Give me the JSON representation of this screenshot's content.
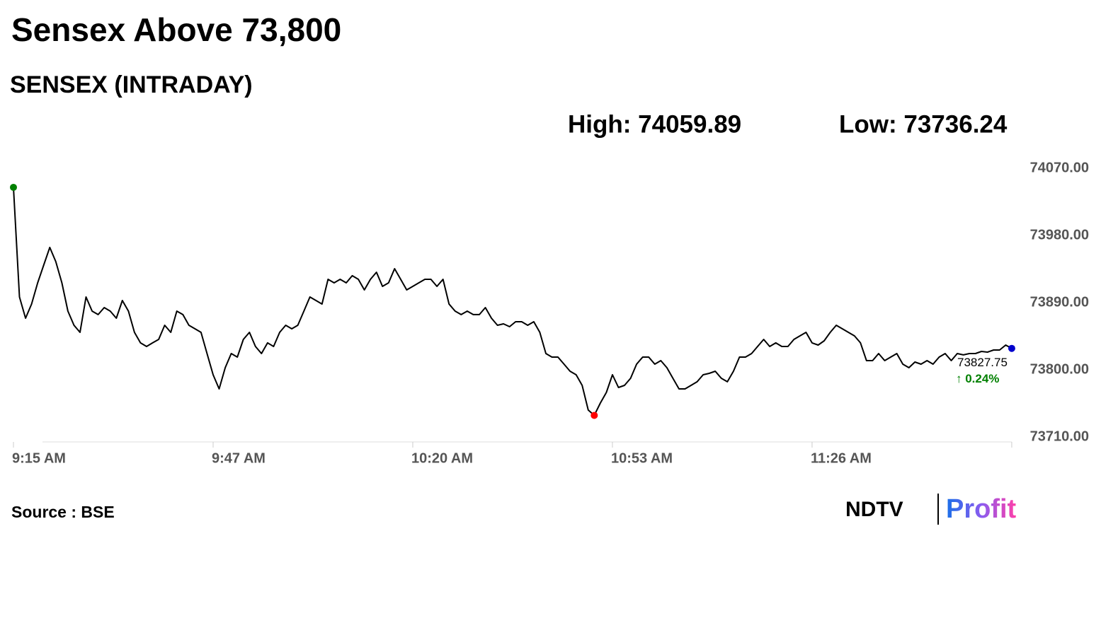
{
  "chart_data": {
    "type": "line",
    "title": "Sensex Above 73,800",
    "subtitle": "SENSEX (INTRADAY)",
    "high_label": "High: 74059.89",
    "low_label": "Low: 73736.24",
    "change_label": "↑ 0.24%",
    "source": "Source : BSE",
    "brand": {
      "left": "NDTV",
      "right": "Profit"
    },
    "color": "#000000",
    "start_color": "#008000",
    "low_color": "#ff0000",
    "end_color": "#0000cc",
    "change_color": "#008000",
    "grid": false,
    "ylim": [
      73710,
      74070
    ],
    "yticks": [
      {
        "value": 74070,
        "label": "74070.00"
      },
      {
        "value": 73980,
        "label": "73980.00"
      },
      {
        "value": 73890,
        "label": "73890.00"
      },
      {
        "value": 73800,
        "label": "73800.00"
      },
      {
        "value": 73710,
        "label": "73710.00"
      }
    ],
    "categories": [
      "9:15 AM",
      null,
      null,
      null,
      null,
      null,
      null,
      null,
      null,
      null,
      null,
      null,
      null,
      null,
      null,
      null,
      null,
      null,
      null,
      null,
      null,
      null,
      null,
      null,
      null,
      null,
      null,
      null,
      null,
      null,
      null,
      null,
      null,
      "9:47 AM",
      null,
      null,
      null,
      null,
      null,
      null,
      null,
      null,
      null,
      null,
      null,
      null,
      null,
      null,
      null,
      null,
      null,
      null,
      null,
      null,
      null,
      null,
      null,
      null,
      null,
      null,
      null,
      null,
      null,
      null,
      null,
      null,
      "10:20 AM",
      null,
      null,
      null,
      null,
      null,
      null,
      null,
      null,
      null,
      null,
      null,
      null,
      null,
      null,
      null,
      null,
      null,
      null,
      null,
      null,
      null,
      null,
      null,
      null,
      null,
      null,
      null,
      null,
      null,
      null,
      null,
      null,
      "10:53 AM",
      null,
      null,
      null,
      null,
      null,
      null,
      null,
      null,
      null,
      null,
      null,
      null,
      null,
      null,
      null,
      null,
      null,
      null,
      null,
      null,
      null,
      null,
      null,
      null,
      null,
      null,
      null,
      null,
      null,
      null,
      null,
      null,
      "11:26 AM",
      null,
      null,
      null,
      null,
      null,
      null,
      null,
      null,
      null,
      null,
      null,
      null,
      null,
      null,
      null,
      null,
      null,
      null,
      null,
      null,
      null,
      null,
      null,
      null,
      null,
      null,
      null,
      null,
      null,
      null,
      null,
      null,
      null
    ],
    "values": [
      74043.5,
      73896.6,
      73868.2,
      73887.2,
      73915.6,
      73939.3,
      73963,
      73944,
      73915.6,
      73877.7,
      73858.7,
      73849.3,
      73896.6,
      73877.7,
      73873,
      73882.4,
      73877.7,
      73868.2,
      73891.9,
      73877.7,
      73849.3,
      73835.1,
      73830.3,
      73835.1,
      73839.8,
      73858.7,
      73849.3,
      73877.7,
      73873,
      73858.7,
      73854,
      73849.3,
      73820.8,
      73792.4,
      73773.5,
      73801.9,
      73820.8,
      73816.1,
      73839.8,
      73849.3,
      73830.3,
      73820.8,
      73835.1,
      73830.3,
      73849.3,
      73858.7,
      73854,
      73858.7,
      73877.7,
      73896.6,
      73891.9,
      73887.2,
      73920.3,
      73915.6,
      73920.3,
      73915.6,
      73925.1,
      73920.3,
      73906.1,
      73920.3,
      73929.8,
      73910.8,
      73915.6,
      73934.5,
      73920.3,
      73906.1,
      73910.8,
      73915.6,
      73920.3,
      73920.3,
      73910.8,
      73920.3,
      73887.2,
      73877.7,
      73873,
      73877.7,
      73873,
      73873,
      73882.4,
      73868.2,
      73858.7,
      73860.6,
      73856.8,
      73863.5,
      73863.5,
      73858.7,
      73863.5,
      73849.3,
      73820.8,
      73816.1,
      73816.1,
      73806.6,
      73797.2,
      73792.4,
      73778.2,
      73745.1,
      73738,
      73754.5,
      73768.7,
      73792.4,
      73775.4,
      73778.2,
      73787.7,
      73806.6,
      73816.1,
      73816.1,
      73806.6,
      73811.4,
      73801.9,
      73787.7,
      73773.5,
      73773.5,
      73778.2,
      73783,
      73792.4,
      73794.3,
      73797.2,
      73787.7,
      73783,
      73797.2,
      73816.1,
      73816.1,
      73820.8,
      73830.3,
      73839.8,
      73830.3,
      73835.1,
      73830.3,
      73830.3,
      73839.8,
      73844.5,
      73849.3,
      73835.1,
      73832.2,
      73837.9,
      73849.3,
      73858.7,
      73854,
      73849.3,
      73844.5,
      73835.1,
      73811.4,
      73811.4,
      73820.8,
      73811.4,
      73816.1,
      73820.8,
      73806.6,
      73801.9,
      73809.5,
      73806.6,
      73811.4,
      73806.6,
      73816.1,
      73820.8,
      73811.4,
      73820.8,
      73819,
      73820.8,
      73820.8,
      73823.7,
      73822.7,
      73825.6,
      73825.6,
      73832.2,
      73827.75
    ]
  }
}
